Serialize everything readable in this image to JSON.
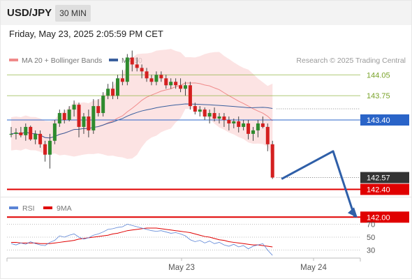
{
  "header": {
    "symbol": "USD/JPY",
    "timeframe": "30 MIN",
    "datetime": "Friday, May 23, 2025 2:05:59 PM CET"
  },
  "chart_data": {
    "type": "candlestick",
    "legend": [
      {
        "label": "MA 20 + Bollinger Bands",
        "color": "#f08a8a"
      },
      {
        "label": "MA 50",
        "color": "#3a5f9e"
      }
    ],
    "credit": "Research © 2025 Trading Central",
    "price_levels": [
      {
        "label": "144.05",
        "value": 144.05,
        "color": "#8cb43c",
        "style": "thin"
      },
      {
        "label": "143.75",
        "value": 143.75,
        "color": "#8cb43c",
        "style": "thin"
      },
      {
        "label": "143.40",
        "value": 143.4,
        "color": "#2a64c8",
        "style": "thin"
      },
      {
        "label": "142.40",
        "value": 142.4,
        "color": "#e00000",
        "style": "thick"
      },
      {
        "label": "142.00",
        "value": 142.0,
        "color": "#e00000",
        "style": "thick"
      }
    ],
    "current_price": {
      "label": "142.57",
      "value": 142.57
    },
    "x_axis_labels": [
      "May 23",
      "May 24"
    ],
    "candles": [
      [
        143.2,
        143.3,
        143.15,
        143.2
      ],
      [
        143.2,
        143.28,
        143.12,
        143.22
      ],
      [
        143.22,
        143.3,
        143.15,
        143.18
      ],
      [
        143.18,
        143.35,
        143.1,
        143.3
      ],
      [
        143.3,
        143.32,
        143.1,
        143.12
      ],
      [
        143.12,
        143.25,
        143.05,
        143.2
      ],
      [
        143.2,
        143.25,
        143.0,
        143.05
      ],
      [
        143.05,
        143.1,
        142.8,
        142.9
      ],
      [
        142.9,
        143.2,
        142.7,
        143.1
      ],
      [
        143.1,
        143.4,
        143.05,
        143.35
      ],
      [
        143.35,
        143.55,
        143.3,
        143.5
      ],
      [
        143.5,
        143.55,
        143.35,
        143.4
      ],
      [
        143.4,
        143.6,
        143.38,
        143.55
      ],
      [
        143.55,
        143.68,
        143.45,
        143.62
      ],
      [
        143.62,
        143.65,
        143.15,
        143.3
      ],
      [
        143.3,
        143.5,
        143.2,
        143.45
      ],
      [
        143.45,
        143.55,
        143.15,
        143.25
      ],
      [
        143.25,
        143.7,
        143.2,
        143.6
      ],
      [
        143.6,
        143.7,
        143.45,
        143.5
      ],
      [
        143.5,
        143.8,
        143.45,
        143.75
      ],
      [
        143.75,
        143.92,
        143.7,
        143.85
      ],
      [
        143.85,
        143.95,
        143.7,
        143.75
      ],
      [
        143.75,
        144.05,
        143.7,
        144.0
      ],
      [
        144.0,
        144.12,
        143.9,
        143.95
      ],
      [
        143.95,
        144.35,
        143.9,
        144.3
      ],
      [
        144.3,
        144.4,
        144.1,
        144.2
      ],
      [
        144.2,
        144.3,
        144.1,
        144.15
      ],
      [
        144.15,
        144.2,
        144.0,
        144.1
      ],
      [
        144.1,
        144.15,
        143.95,
        144.0
      ],
      [
        144.0,
        144.05,
        143.9,
        143.95
      ],
      [
        143.95,
        144.1,
        143.9,
        144.05
      ],
      [
        144.05,
        144.1,
        143.95,
        144.0
      ],
      [
        144.0,
        144.05,
        143.85,
        143.9
      ],
      [
        143.9,
        144.0,
        143.85,
        143.95
      ],
      [
        143.95,
        144.0,
        143.85,
        143.9
      ],
      [
        143.9,
        144.0,
        143.8,
        143.85
      ],
      [
        143.85,
        143.95,
        143.75,
        143.9
      ],
      [
        143.9,
        143.95,
        143.55,
        143.6
      ],
      [
        143.6,
        143.65,
        143.48,
        143.52
      ],
      [
        143.52,
        143.6,
        143.45,
        143.55
      ],
      [
        143.55,
        143.58,
        143.4,
        143.45
      ],
      [
        143.45,
        143.55,
        143.35,
        143.5
      ],
      [
        143.5,
        143.58,
        143.38,
        143.42
      ],
      [
        143.42,
        143.5,
        143.35,
        143.45
      ],
      [
        143.45,
        143.5,
        143.3,
        143.4
      ],
      [
        143.4,
        143.45,
        143.25,
        143.35
      ],
      [
        143.35,
        143.42,
        143.28,
        143.38
      ],
      [
        143.38,
        143.45,
        143.22,
        143.3
      ],
      [
        143.3,
        143.4,
        143.25,
        143.35
      ],
      [
        143.35,
        143.4,
        143.12,
        143.2
      ],
      [
        143.2,
        143.3,
        143.1,
        143.25
      ],
      [
        143.25,
        143.4,
        143.15,
        143.35
      ],
      [
        143.35,
        143.45,
        143.28,
        143.3
      ],
      [
        143.3,
        143.35,
        142.95,
        143.05
      ],
      [
        143.05,
        143.1,
        142.55,
        142.57
      ]
    ],
    "forecast_path": [
      142.55,
      142.95,
      142.0
    ],
    "rsi": {
      "labels": [
        {
          "label": "RSI",
          "color": "#5b84d6"
        },
        {
          "label": "9MA",
          "color": "#e00000"
        }
      ],
      "ticks": [
        "70",
        "50",
        "30"
      ],
      "tick_values": [
        70,
        50,
        30
      ],
      "rsi_values": [
        40,
        38,
        41,
        39,
        43,
        40,
        38,
        37,
        42,
        45,
        52,
        50,
        53,
        55,
        50,
        47,
        49,
        53,
        55,
        58,
        62,
        63,
        65,
        66,
        70,
        68,
        66,
        64,
        62,
        60,
        59,
        60,
        58,
        56,
        57,
        55,
        52,
        46,
        43,
        45,
        41,
        44,
        40,
        42,
        38,
        36,
        39,
        35,
        37,
        32,
        36,
        38,
        40,
        30,
        22
      ],
      "ma_values": [
        42,
        42,
        41,
        41,
        41,
        41,
        40,
        40,
        40,
        41,
        42,
        43,
        44,
        45,
        47,
        48,
        49,
        50,
        51,
        52,
        53,
        55,
        56,
        58,
        60,
        61,
        62,
        63,
        64,
        64,
        64,
        63,
        62,
        61,
        60,
        59,
        58,
        57,
        55,
        53,
        51,
        50,
        48,
        46,
        45,
        43,
        42,
        41,
        40,
        39,
        38,
        38,
        37,
        36,
        35
      ]
    }
  }
}
